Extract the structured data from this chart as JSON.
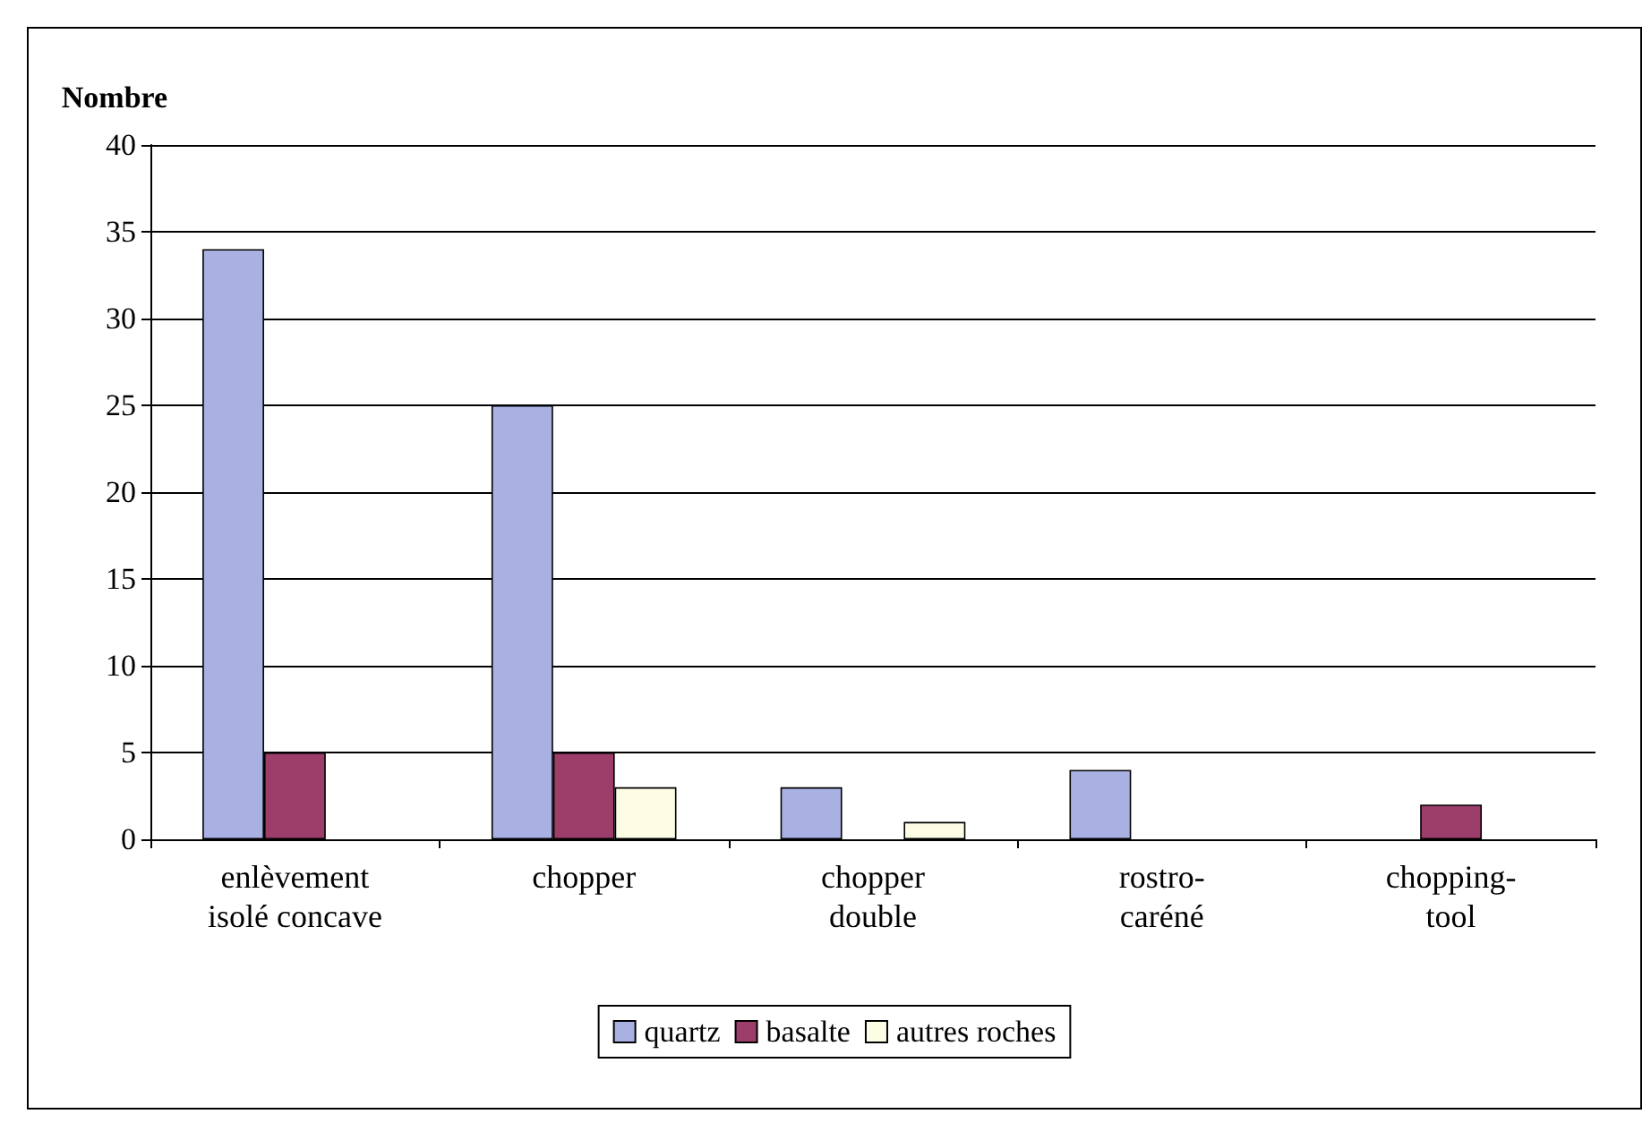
{
  "chart_data": {
    "type": "bar",
    "ylabel": "Nombre",
    "categories": [
      "enlèvement\nisolé concave",
      "chopper",
      "chopper\ndouble",
      "rostro-\ncaréné",
      "chopping-\ntool"
    ],
    "series": [
      {
        "name": "quartz",
        "color": "#a9b1e3",
        "values": [
          34,
          25,
          3,
          4,
          0
        ]
      },
      {
        "name": "basalte",
        "color": "#9c3d6a",
        "values": [
          5,
          5,
          0,
          0,
          2
        ]
      },
      {
        "name": "autres roches",
        "color": "#fdfde6",
        "values": [
          0,
          3,
          1,
          0,
          0
        ]
      }
    ],
    "ylim": [
      0,
      40
    ],
    "yticks": [
      0,
      5,
      10,
      15,
      20,
      25,
      30,
      35,
      40
    ],
    "grid": "y",
    "legend": "bottom"
  }
}
